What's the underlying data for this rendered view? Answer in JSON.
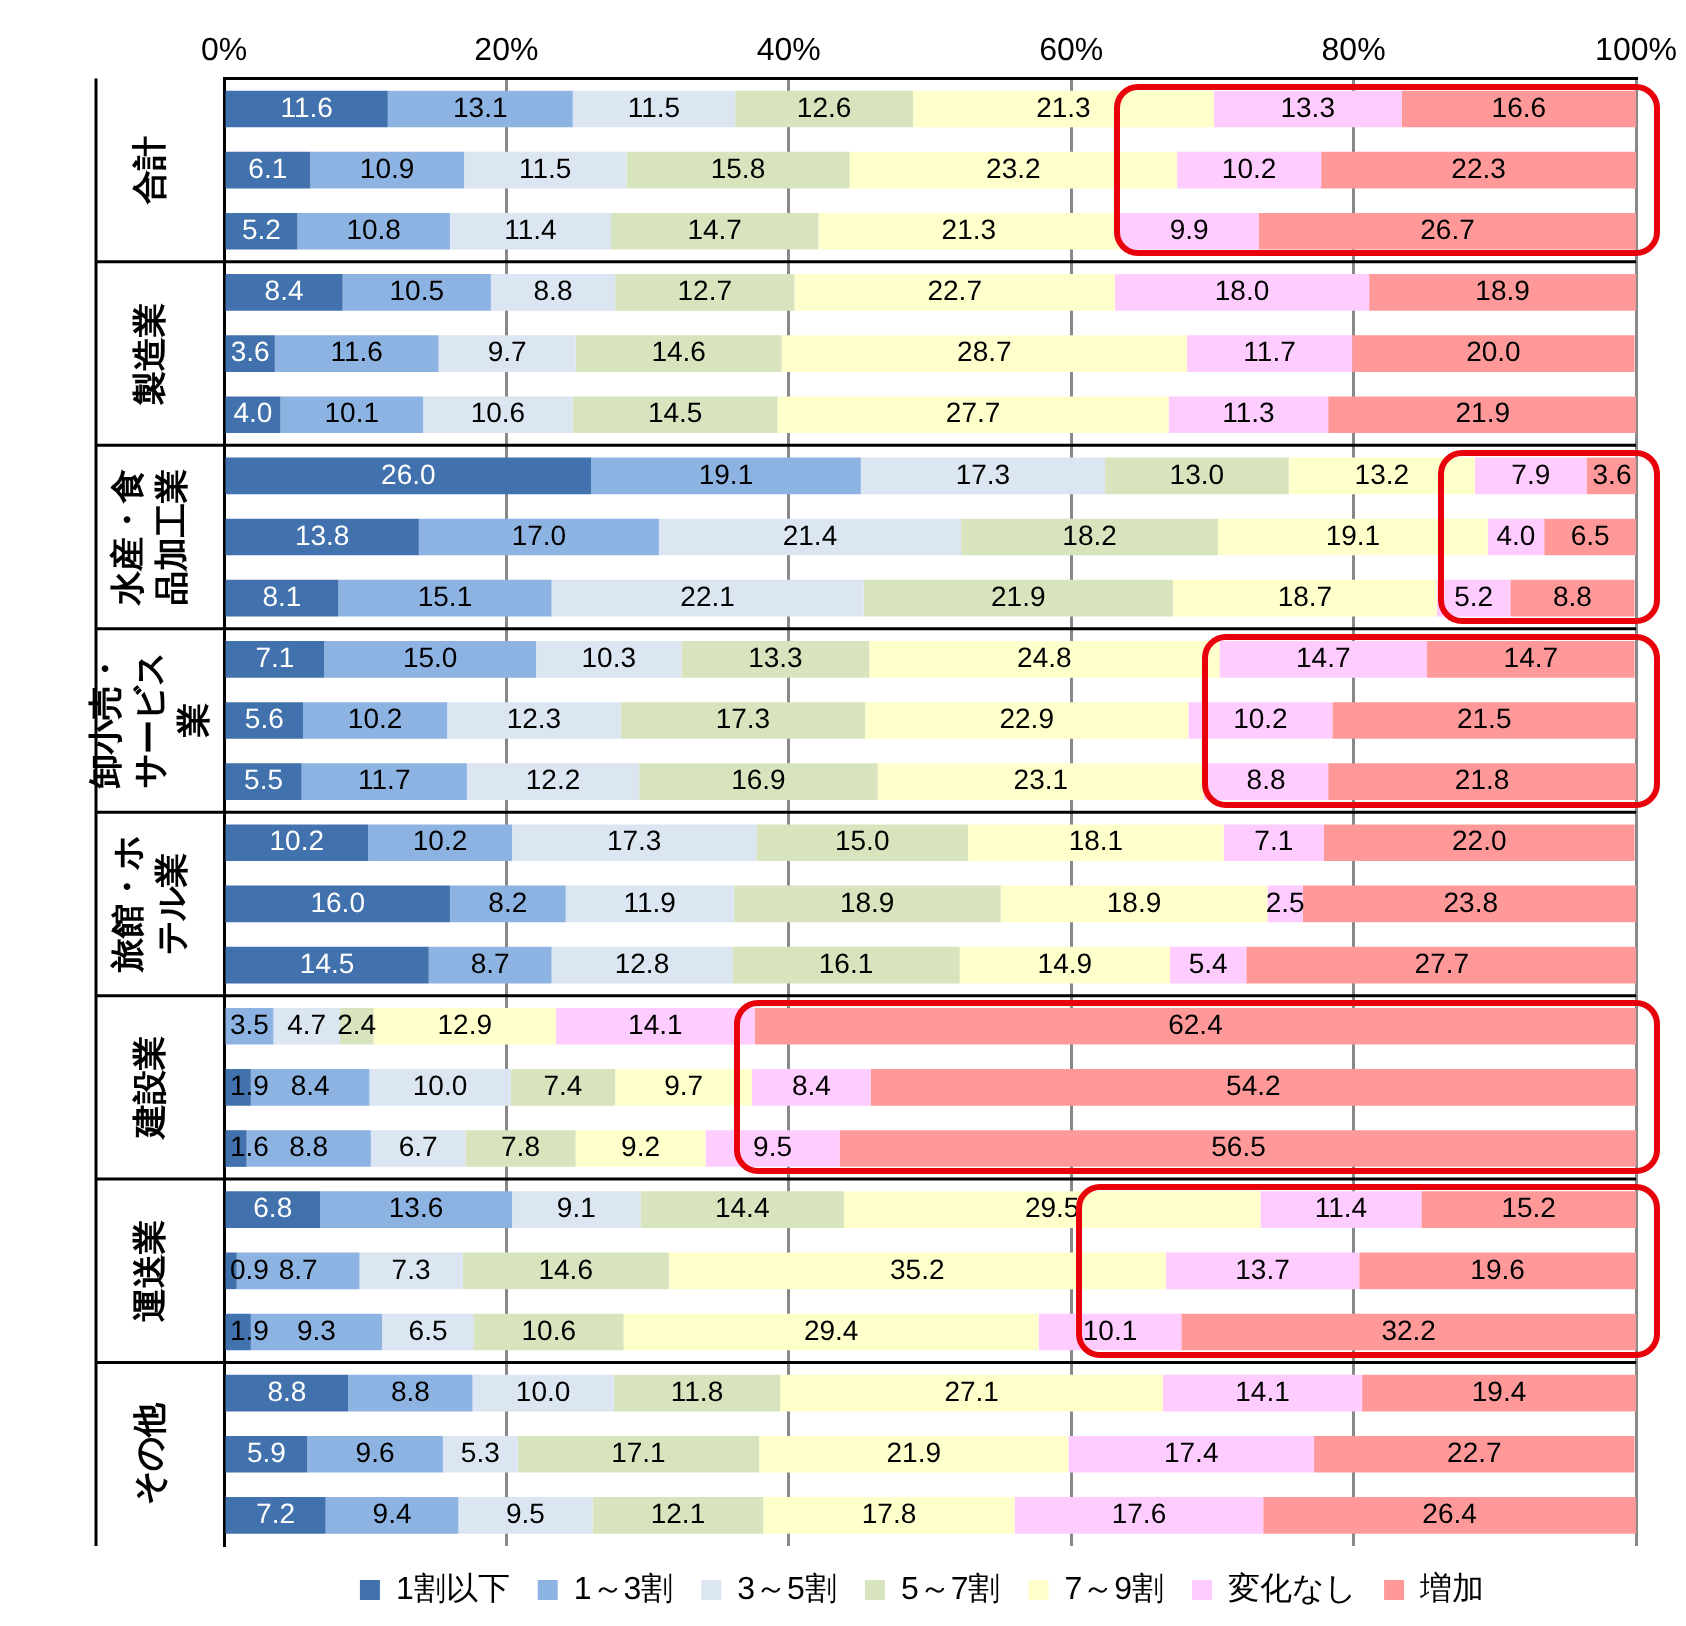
{
  "chart_data": {
    "type": "bar",
    "orientation": "horizontal",
    "stacked": true,
    "categories": [
      null,
      "合計",
      null,
      null,
      "製造業",
      null,
      null,
      "水産・食品加工業",
      null,
      null,
      "卸小売・サービス業",
      null,
      null,
      "旅館・ホテル業",
      null,
      null,
      "建設業",
      null,
      null,
      "運送業",
      null,
      null,
      "その他",
      null
    ],
    "series": [
      {
        "name": "1割以下",
        "color": "#4272ad",
        "values": [
          11.6,
          6.1,
          5.2,
          8.4,
          3.6,
          4.0,
          26.0,
          13.8,
          8.1,
          7.1,
          5.6,
          5.5,
          10.2,
          16.0,
          14.5,
          null,
          1.9,
          1.6,
          6.8,
          0.9,
          1.9,
          8.8,
          5.9,
          7.2
        ],
        "value_labels": [
          "11.6",
          "6.1",
          "5.2",
          "8.4",
          "3.6",
          "4.0",
          "26.0",
          "13.8",
          "8.1",
          "7.1",
          "5.6",
          "5.5",
          "10.2",
          "16.0",
          "14.5",
          null,
          "1.9",
          "1.6",
          "6.8",
          "0.9",
          "1.9",
          "8.8",
          "5.9",
          "7.2"
        ]
      },
      {
        "name": "1～3割",
        "color": "#8db3e2",
        "values": [
          13.1,
          10.9,
          10.8,
          10.5,
          11.6,
          10.1,
          19.1,
          17.0,
          15.1,
          15.0,
          10.2,
          11.7,
          10.2,
          8.2,
          8.7,
          3.5,
          8.4,
          8.8,
          13.6,
          8.7,
          9.3,
          8.8,
          9.6,
          9.4
        ],
        "value_labels": [
          "13.1",
          "10.9",
          "10.8",
          "10.5",
          "11.6",
          "10.1",
          "19.1",
          "17.0",
          "15.1",
          "15.0",
          "10.2",
          "11.7",
          "10.2",
          "8.2",
          "8.7",
          "3.5",
          "8.4",
          "8.8",
          "13.6",
          "8.7",
          "9.3",
          "8.8",
          "9.6",
          "9.4"
        ]
      },
      {
        "name": "3～5割",
        "color": "#dce6f2",
        "values": [
          11.5,
          11.5,
          11.4,
          8.8,
          9.7,
          10.6,
          17.3,
          21.4,
          22.1,
          10.3,
          12.3,
          12.2,
          17.3,
          11.9,
          12.8,
          4.7,
          10.0,
          6.7,
          9.1,
          7.3,
          6.5,
          10.0,
          5.3,
          9.5
        ],
        "value_labels": [
          "11.5",
          "11.5",
          "11.4",
          "8.8",
          "9.7",
          "10.6",
          "17.3",
          "21.4",
          "22.1",
          "10.3",
          "12.3",
          "12.2",
          "17.3",
          "11.9",
          "12.8",
          "4.7",
          "10.0",
          "6.7",
          "9.1",
          "7.3",
          "6.5",
          "10.0",
          "5.3",
          "9.5"
        ]
      },
      {
        "name": "5～7割",
        "color": "#d7e4bd",
        "values": [
          12.6,
          15.8,
          14.7,
          12.7,
          14.6,
          14.5,
          13.0,
          18.2,
          21.9,
          13.3,
          17.3,
          16.9,
          15.0,
          18.9,
          16.1,
          2.4,
          7.4,
          7.8,
          14.4,
          14.6,
          10.6,
          11.8,
          17.1,
          12.1
        ],
        "value_labels": [
          "12.6",
          "15.8",
          "14.7",
          "12.7",
          "14.6",
          "14.5",
          "13.0",
          "18.2",
          "21.9",
          "13.3",
          "17.3",
          "16.9",
          "15.0",
          "18.9",
          "16.1",
          "2.4",
          "7.4",
          "7.8",
          "14.4",
          "14.6",
          "10.6",
          "11.8",
          "17.1",
          "12.1"
        ]
      },
      {
        "name": "7～9割",
        "color": "#ffffcc",
        "values": [
          21.3,
          23.2,
          21.3,
          22.7,
          28.7,
          27.7,
          13.2,
          19.1,
          18.7,
          24.8,
          22.9,
          23.1,
          18.1,
          18.9,
          14.9,
          12.9,
          9.7,
          9.2,
          29.5,
          35.2,
          29.4,
          27.1,
          21.9,
          17.8
        ],
        "value_labels": [
          "21.3",
          "23.2",
          "21.3",
          "22.7",
          "28.7",
          "27.7",
          "13.2",
          "19.1",
          "18.7",
          "24.8",
          "22.9",
          "23.1",
          "18.1",
          "18.9",
          "14.9",
          "12.9",
          "9.7",
          "9.2",
          "29.5",
          "35.2",
          "29.4",
          "27.1",
          "21.9",
          "17.8"
        ]
      },
      {
        "name": "変化なし",
        "color": "#ffccff",
        "values": [
          13.3,
          10.2,
          9.9,
          18.0,
          11.7,
          11.3,
          7.9,
          4.0,
          5.2,
          14.7,
          10.2,
          8.8,
          7.1,
          2.5,
          5.4,
          14.1,
          8.4,
          9.5,
          11.4,
          13.7,
          10.1,
          14.1,
          17.4,
          17.6
        ],
        "value_labels": [
          "13.3",
          "10.2",
          "9.9",
          "18.0",
          "11.7",
          "11.3",
          "7.9",
          "4.0",
          "5.2",
          "14.7",
          "10.2",
          "8.8",
          "7.1",
          "2.5",
          "5.4",
          "14.1",
          "8.4",
          "9.5",
          "11.4",
          "13.7",
          "10.1",
          "14.1",
          "17.4",
          "17.6"
        ]
      },
      {
        "name": "増加",
        "color": "#ff9999",
        "values": [
          16.6,
          22.3,
          26.7,
          18.9,
          20.0,
          21.9,
          3.6,
          6.5,
          8.8,
          14.7,
          21.5,
          21.8,
          22.0,
          23.8,
          27.7,
          62.4,
          54.2,
          56.5,
          15.2,
          19.6,
          32.2,
          19.4,
          22.7,
          26.4
        ],
        "value_labels": [
          "16.6",
          "22.3",
          "26.7",
          "18.9",
          "20.0",
          "21.9",
          "3.6",
          "6.5",
          "8.8",
          "14.7",
          "21.5",
          "21.8",
          "22.0",
          "23.8",
          "27.7",
          "62.4",
          "54.2",
          "56.5",
          "15.2",
          "19.6",
          "32.2",
          "19.4",
          "22.7",
          "26.4"
        ]
      }
    ],
    "xlim": [
      0,
      100
    ],
    "xticks": [
      {
        "value": 0,
        "label": "0%"
      },
      {
        "value": 20,
        "label": "20%"
      },
      {
        "value": 40,
        "label": "40%"
      },
      {
        "value": 60,
        "label": "60%"
      },
      {
        "value": 80,
        "label": "80%"
      },
      {
        "value": 100,
        "label": "100%"
      }
    ],
    "grid": "x",
    "legend": "bottom"
  }
}
